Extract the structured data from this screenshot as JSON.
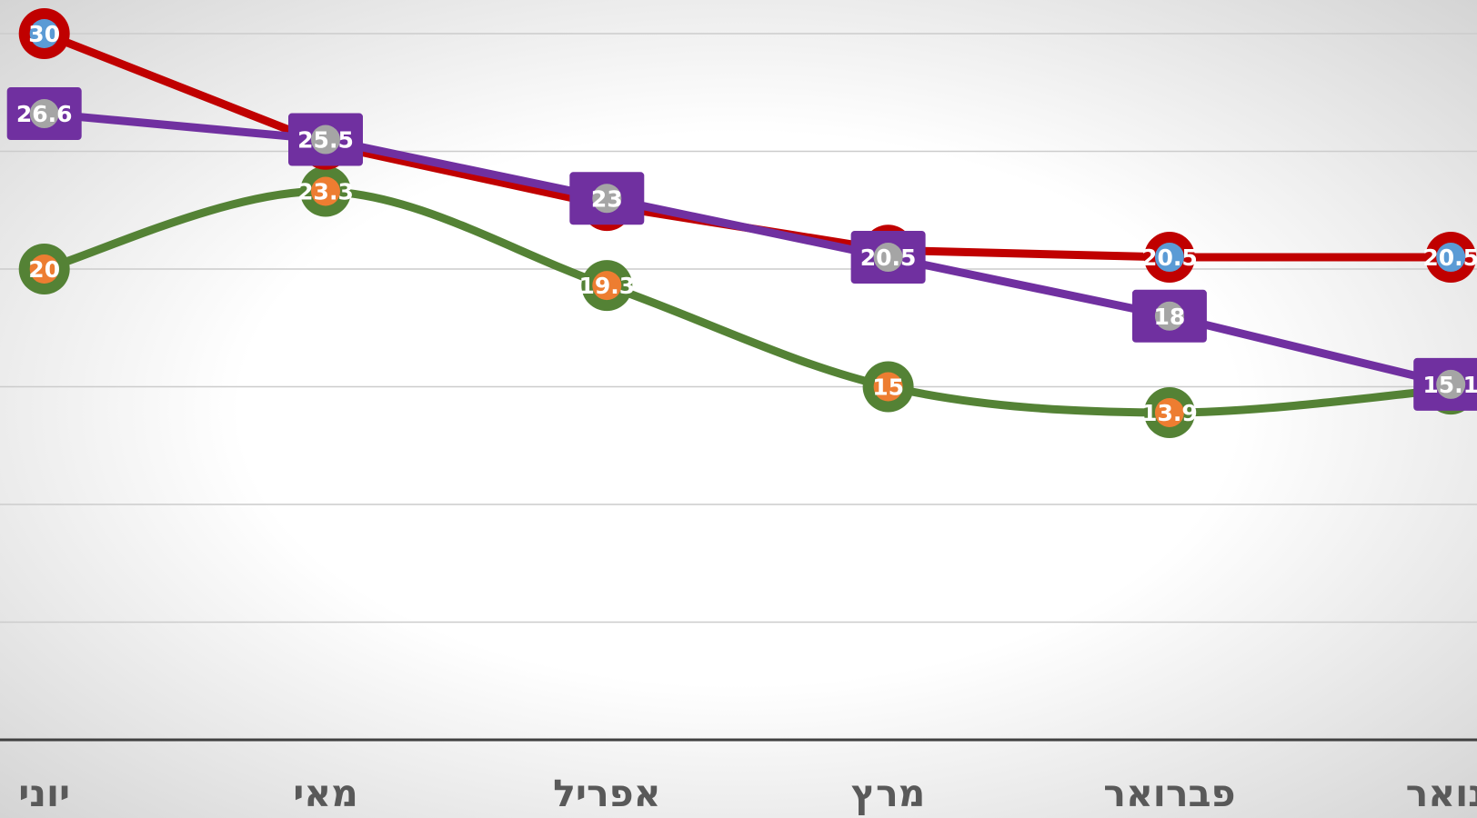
{
  "chart_data": {
    "type": "line",
    "categories": [
      "יוני",
      "מאי",
      "אפריל",
      "מרץ",
      "פברואר",
      "ינואר"
    ],
    "series": [
      {
        "color": "#548235",
        "marker": "circle",
        "marker_color": "#ed7d31",
        "smooth": true,
        "values": [
          20,
          23.3,
          19.3,
          15,
          13.9,
          14.9
        ]
      },
      {
        "color": "#c00000",
        "marker": "circle",
        "marker_color": "#5b9bd5",
        "smooth": false,
        "values": [
          30,
          25.3,
          22.7,
          20.8,
          20.5,
          20.5
        ]
      },
      {
        "color": "#7030a0",
        "marker": "square",
        "marker_color": "#a5a5a5",
        "smooth": false,
        "values": [
          26.6,
          25.5,
          23,
          20.5,
          18,
          15.1
        ]
      }
    ],
    "ylim": [
      0,
      30
    ],
    "yticks": [
      0,
      5,
      10,
      15,
      20,
      25,
      30
    ],
    "grid": true
  }
}
